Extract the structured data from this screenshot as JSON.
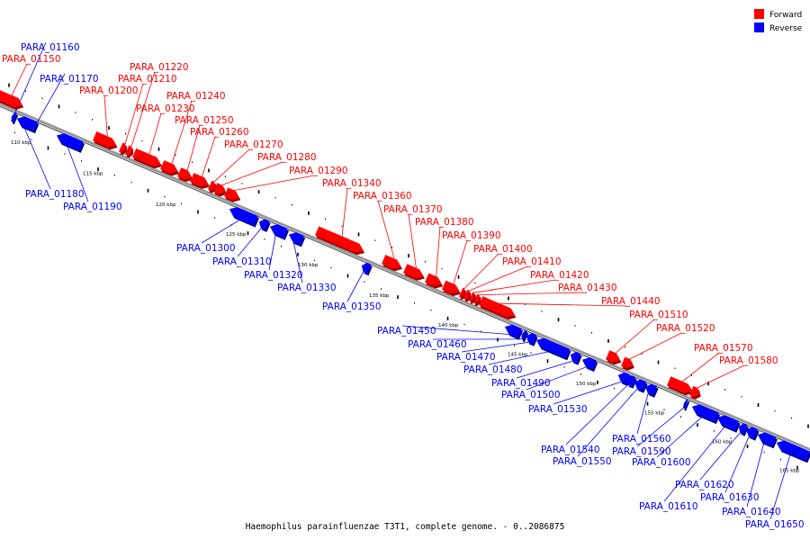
{
  "caption": "Haemophilus parainfluenzae T3T1, complete genome. - 0..2086875",
  "legend": {
    "forward": {
      "label": "Forward",
      "color": "#ff0000"
    },
    "reverse": {
      "label": "Reverse",
      "color": "#0000ff"
    }
  },
  "kbp_labels": [
    "110 kbp",
    "115 kbp",
    "120 kbp",
    "125 kbp",
    "130 kbp",
    "135 kbp",
    "140 kbp",
    "145 kbp",
    "150 kbp",
    "155 kbp",
    "160 kbp",
    "165 kbp"
  ],
  "genes": [
    {
      "name": "PARA_01150",
      "strand": "forward"
    },
    {
      "name": "PARA_01160",
      "strand": "reverse"
    },
    {
      "name": "PARA_01170",
      "strand": "reverse"
    },
    {
      "name": "PARA_01180",
      "strand": "reverse"
    },
    {
      "name": "PARA_01190",
      "strand": "reverse"
    },
    {
      "name": "PARA_01200",
      "strand": "forward"
    },
    {
      "name": "PARA_01210",
      "strand": "forward"
    },
    {
      "name": "PARA_01220",
      "strand": "forward"
    },
    {
      "name": "PARA_01230",
      "strand": "forward"
    },
    {
      "name": "PARA_01240",
      "strand": "forward"
    },
    {
      "name": "PARA_01250",
      "strand": "forward"
    },
    {
      "name": "PARA_01260",
      "strand": "forward"
    },
    {
      "name": "PARA_01270",
      "strand": "forward"
    },
    {
      "name": "PARA_01280",
      "strand": "forward"
    },
    {
      "name": "PARA_01290",
      "strand": "forward"
    },
    {
      "name": "PARA_01300",
      "strand": "reverse"
    },
    {
      "name": "PARA_01310",
      "strand": "reverse"
    },
    {
      "name": "PARA_01320",
      "strand": "reverse"
    },
    {
      "name": "PARA_01330",
      "strand": "reverse"
    },
    {
      "name": "PARA_01340",
      "strand": "forward"
    },
    {
      "name": "PARA_01350",
      "strand": "reverse"
    },
    {
      "name": "PARA_01360",
      "strand": "forward"
    },
    {
      "name": "PARA_01370",
      "strand": "forward"
    },
    {
      "name": "PARA_01380",
      "strand": "forward"
    },
    {
      "name": "PARA_01390",
      "strand": "forward"
    },
    {
      "name": "PARA_01400",
      "strand": "forward"
    },
    {
      "name": "PARA_01410",
      "strand": "forward"
    },
    {
      "name": "PARA_01420",
      "strand": "forward"
    },
    {
      "name": "PARA_01430",
      "strand": "forward"
    },
    {
      "name": "PARA_01440",
      "strand": "forward"
    },
    {
      "name": "PARA_01450",
      "strand": "reverse"
    },
    {
      "name": "PARA_01460",
      "strand": "reverse"
    },
    {
      "name": "PARA_01470",
      "strand": "reverse"
    },
    {
      "name": "PARA_01480",
      "strand": "reverse"
    },
    {
      "name": "PARA_01490",
      "strand": "reverse"
    },
    {
      "name": "PARA_01500",
      "strand": "reverse"
    },
    {
      "name": "PARA_01510",
      "strand": "forward"
    },
    {
      "name": "PARA_01520",
      "strand": "forward"
    },
    {
      "name": "PARA_01530",
      "strand": "reverse"
    },
    {
      "name": "PARA_01540",
      "strand": "reverse"
    },
    {
      "name": "PARA_01550",
      "strand": "reverse"
    },
    {
      "name": "PARA_01560",
      "strand": "reverse"
    },
    {
      "name": "PARA_01570",
      "strand": "forward"
    },
    {
      "name": "PARA_01580",
      "strand": "forward"
    },
    {
      "name": "PARA_01590",
      "strand": "reverse"
    },
    {
      "name": "PARA_01600",
      "strand": "reverse"
    },
    {
      "name": "PARA_01610",
      "strand": "reverse"
    },
    {
      "name": "PARA_01620",
      "strand": "reverse"
    },
    {
      "name": "PARA_01630",
      "strand": "reverse"
    },
    {
      "name": "PARA_01640",
      "strand": "reverse"
    },
    {
      "name": "PARA_01650",
      "strand": "reverse"
    }
  ]
}
